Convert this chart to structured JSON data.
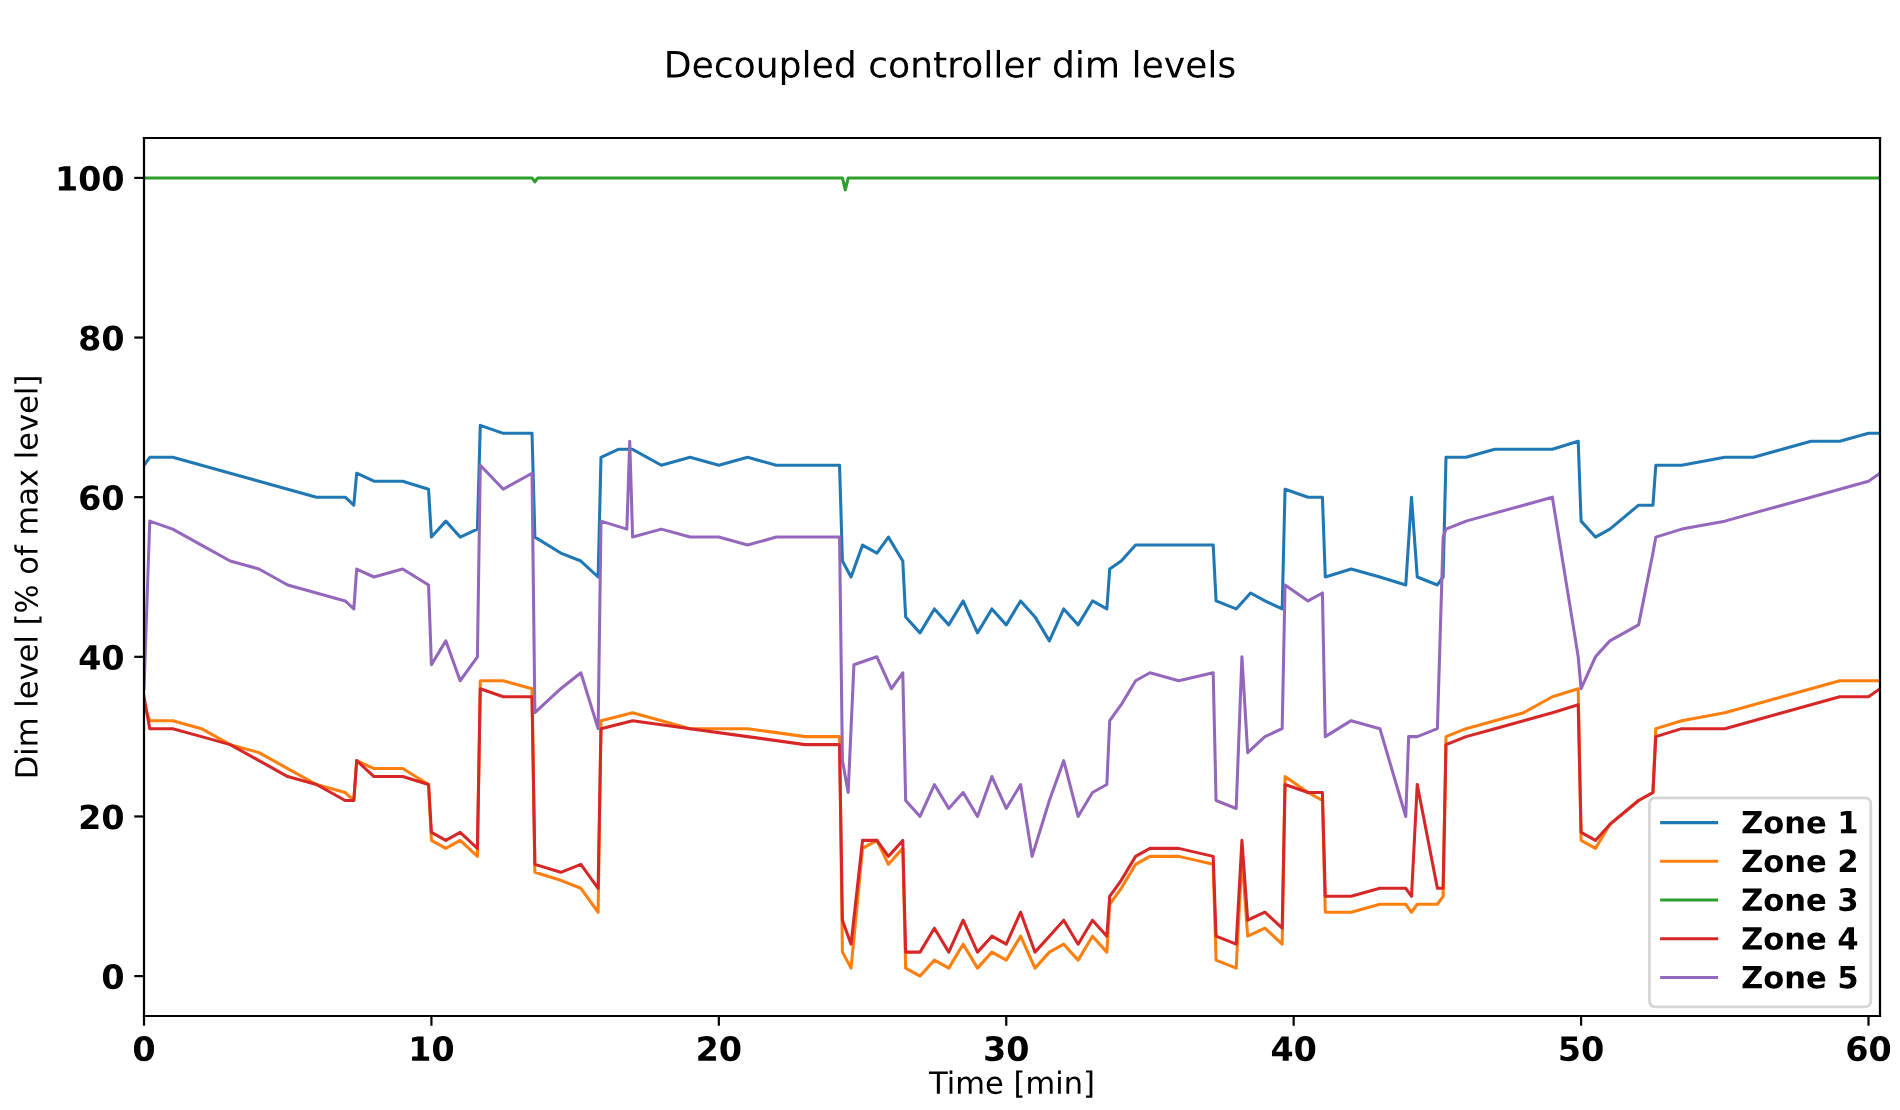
{
  "chart_data": {
    "type": "line",
    "title": "Decoupled controller dim levels",
    "xlabel": "Time [min]",
    "ylabel": "Dim level [% of max level]",
    "xlim": [
      0,
      60.4
    ],
    "ylim": [
      -5,
      105
    ],
    "xticks": [
      0,
      10,
      20,
      30,
      40,
      50,
      60
    ],
    "yticks": [
      0,
      20,
      40,
      60,
      80,
      100
    ],
    "grid": false,
    "legend": "bottom right",
    "line_style": "solid",
    "marker": "none",
    "series": [
      {
        "name": "Zone 1",
        "color": "#1f77b4",
        "x": [
          0,
          0.2,
          1,
          2,
          3,
          4,
          5,
          6,
          7,
          7.3,
          7.4,
          8,
          9,
          9.9,
          10,
          10.5,
          11,
          11.6,
          11.7,
          12.5,
          13.5,
          13.6,
          14.5,
          15.2,
          15.8,
          15.9,
          16.5,
          17,
          18,
          19,
          20,
          21,
          22,
          23,
          24.2,
          24.3,
          24.6,
          25,
          25.5,
          25.9,
          26.4,
          26.5,
          27,
          27.5,
          28,
          28.5,
          29,
          29.5,
          30,
          30.5,
          31,
          31.5,
          32,
          32.5,
          33,
          33.5,
          33.6,
          34,
          34.5,
          35,
          36,
          37.2,
          37.3,
          38,
          38.5,
          39,
          39.6,
          39.7,
          40.5,
          41,
          41.1,
          42,
          43,
          43.9,
          44.1,
          44.3,
          45,
          45.2,
          45.3,
          46,
          47,
          48,
          49,
          49.9,
          50,
          50.5,
          51,
          52,
          52.5,
          52.6,
          53.5,
          55,
          56,
          57,
          58,
          59,
          60,
          60.4
        ],
        "values": [
          64,
          65,
          65,
          64,
          63,
          62,
          61,
          60,
          60,
          59,
          63,
          62,
          62,
          61,
          55,
          57,
          55,
          56,
          69,
          68,
          68,
          55,
          53,
          52,
          50,
          65,
          66,
          66,
          64,
          65,
          64,
          65,
          64,
          64,
          64,
          52,
          50,
          54,
          53,
          55,
          52,
          45,
          43,
          46,
          44,
          47,
          43,
          46,
          44,
          47,
          45,
          42,
          46,
          44,
          47,
          46,
          51,
          52,
          54,
          54,
          54,
          54,
          47,
          46,
          48,
          47,
          46,
          61,
          60,
          60,
          50,
          51,
          50,
          49,
          60,
          50,
          49,
          50,
          65,
          65,
          66,
          66,
          66,
          67,
          57,
          55,
          56,
          59,
          59,
          64,
          64,
          65,
          65,
          66,
          67,
          67,
          68,
          68
        ]
      },
      {
        "name": "Zone 2",
        "color": "#ff7f0e",
        "x": [
          0,
          0.2,
          1,
          2,
          3,
          4,
          5,
          6,
          7,
          7.3,
          7.4,
          8,
          9,
          9.9,
          10,
          10.5,
          11,
          11.6,
          11.7,
          12.5,
          13.5,
          13.6,
          14.5,
          15.2,
          15.8,
          15.9,
          17,
          19,
          21,
          23,
          24.2,
          24.3,
          24.6,
          25,
          25.5,
          25.9,
          26.4,
          26.5,
          27,
          27.5,
          28,
          28.5,
          29,
          29.5,
          30,
          30.5,
          31,
          31.5,
          32,
          32.5,
          33,
          33.5,
          33.6,
          34,
          34.5,
          35,
          36,
          37.2,
          37.3,
          38,
          38.2,
          38.4,
          39,
          39.6,
          39.7,
          40.5,
          41,
          41.1,
          42,
          43,
          43.9,
          44.1,
          44.3,
          45,
          45.2,
          45.3,
          46,
          47,
          48,
          49,
          49.9,
          50,
          50.5,
          51,
          52,
          52.5,
          52.6,
          53.5,
          55,
          56,
          57,
          58,
          59,
          60,
          60.4
        ],
        "values": [
          34,
          32,
          32,
          31,
          29,
          28,
          26,
          24,
          23,
          22,
          27,
          26,
          26,
          24,
          17,
          16,
          17,
          15,
          37,
          37,
          36,
          13,
          12,
          11,
          8,
          32,
          33,
          31,
          31,
          30,
          30,
          3,
          1,
          16,
          17,
          14,
          16,
          1,
          0,
          2,
          1,
          4,
          1,
          3,
          2,
          5,
          1,
          3,
          4,
          2,
          5,
          3,
          9,
          11,
          14,
          15,
          15,
          14,
          2,
          1,
          15,
          5,
          6,
          4,
          25,
          23,
          22,
          8,
          8,
          9,
          9,
          8,
          9,
          9,
          10,
          30,
          31,
          32,
          33,
          35,
          36,
          17,
          16,
          19,
          22,
          23,
          31,
          32,
          33,
          34,
          35,
          36,
          37,
          37,
          37
        ]
      },
      {
        "name": "Zone 3",
        "color": "#2ca02c",
        "x": [
          0,
          13.5,
          13.6,
          13.7,
          24.3,
          24.4,
          24.5,
          60.4
        ],
        "values": [
          100,
          100,
          99.5,
          100,
          100,
          98.5,
          100,
          100
        ]
      },
      {
        "name": "Zone 4",
        "color": "#d62728",
        "x": [
          0,
          0.2,
          1,
          2,
          3,
          4,
          5,
          6,
          7,
          7.3,
          7.4,
          8,
          9,
          9.9,
          10,
          10.5,
          11,
          11.6,
          11.7,
          12.5,
          13.5,
          13.6,
          14.5,
          15.2,
          15.8,
          15.9,
          17,
          19,
          21,
          23,
          24.2,
          24.3,
          24.6,
          25,
          25.5,
          25.9,
          26.4,
          26.5,
          27,
          27.5,
          28,
          28.5,
          29,
          29.5,
          30,
          30.5,
          31,
          31.5,
          32,
          32.5,
          33,
          33.5,
          33.6,
          34,
          34.5,
          35,
          36,
          37.2,
          37.3,
          38,
          38.2,
          38.4,
          39,
          39.6,
          39.7,
          40.5,
          41,
          41.1,
          42,
          43,
          43.9,
          44.1,
          44.3,
          45,
          45.2,
          45.3,
          46,
          47,
          48,
          49,
          49.9,
          50,
          50.5,
          51,
          52,
          52.5,
          52.6,
          53.5,
          55,
          56,
          57,
          58,
          59,
          60,
          60.4
        ],
        "values": [
          35,
          31,
          31,
          30,
          29,
          27,
          25,
          24,
          22,
          22,
          27,
          25,
          25,
          24,
          18,
          17,
          18,
          16,
          36,
          35,
          35,
          14,
          13,
          14,
          11,
          31,
          32,
          31,
          30,
          29,
          29,
          7,
          4,
          17,
          17,
          15,
          17,
          3,
          3,
          6,
          3,
          7,
          3,
          5,
          4,
          8,
          3,
          5,
          7,
          4,
          7,
          5,
          10,
          12,
          15,
          16,
          16,
          15,
          5,
          4,
          17,
          7,
          8,
          6,
          24,
          23,
          23,
          10,
          10,
          11,
          11,
          10,
          24,
          11,
          11,
          29,
          30,
          31,
          32,
          33,
          34,
          18,
          17,
          19,
          22,
          23,
          30,
          31,
          31,
          32,
          33,
          34,
          35,
          35,
          36
        ]
      },
      {
        "name": "Zone 5",
        "color": "#9467bd",
        "x": [
          0,
          0.2,
          1,
          2,
          3,
          4,
          5,
          6,
          7,
          7.3,
          7.4,
          8,
          9,
          9.9,
          10,
          10.5,
          11,
          11.6,
          11.7,
          12.5,
          13.5,
          13.6,
          14.5,
          15.2,
          15.8,
          15.9,
          16.8,
          16.9,
          17,
          18,
          19,
          20,
          21,
          22,
          23,
          24.2,
          24.3,
          24.5,
          24.7,
          25.5,
          26,
          26.4,
          26.5,
          27,
          27.5,
          28,
          28.5,
          29,
          29.5,
          30,
          30.5,
          30.9,
          31.5,
          32,
          32.5,
          33,
          33.5,
          33.6,
          34,
          34.5,
          35,
          36,
          37.2,
          37.3,
          38,
          38.2,
          38.4,
          39,
          39.6,
          39.7,
          40.5,
          41,
          41.1,
          42,
          43,
          43.9,
          44,
          44.3,
          45,
          45.2,
          45.3,
          46,
          47,
          48,
          49,
          49.9,
          50,
          50.5,
          51,
          52,
          52.5,
          52.6,
          53.5,
          55,
          56,
          57,
          58,
          59,
          60,
          60.4
        ],
        "values": [
          36,
          57,
          56,
          54,
          52,
          51,
          49,
          48,
          47,
          46,
          51,
          50,
          51,
          49,
          39,
          42,
          37,
          40,
          64,
          61,
          63,
          33,
          36,
          38,
          31,
          57,
          56,
          67,
          55,
          56,
          55,
          55,
          54,
          55,
          55,
          55,
          27,
          23,
          39,
          40,
          36,
          38,
          22,
          20,
          24,
          21,
          23,
          20,
          25,
          21,
          24,
          15,
          22,
          27,
          20,
          23,
          24,
          32,
          34,
          37,
          38,
          37,
          38,
          22,
          21,
          40,
          28,
          30,
          31,
          49,
          47,
          48,
          30,
          32,
          31,
          20,
          30,
          30,
          31,
          55,
          56,
          57,
          58,
          59,
          60,
          40,
          36,
          40,
          42,
          44,
          53,
          55,
          56,
          57,
          58,
          59,
          60,
          61,
          62,
          63
        ]
      }
    ]
  }
}
